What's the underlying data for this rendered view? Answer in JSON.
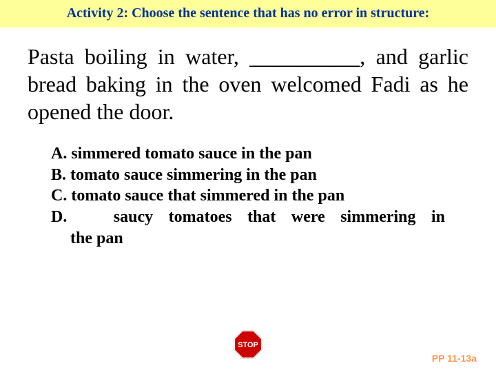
{
  "header": {
    "text": "Activity 2: Choose the sentence that has no error in structure:",
    "color": "#003399",
    "bg_color": "#ffff99",
    "fontsize": 20
  },
  "question": {
    "text": "Pasta boiling in water, __________, and garlic bread baking in the oven welcomed Fadi as he opened the door.",
    "color": "#000000",
    "fontsize": 32
  },
  "options": {
    "fontsize": 24,
    "color": "#000000",
    "items": [
      {
        "label": "A.",
        "text": "simmered tomato sauce in the pan"
      },
      {
        "label": "B.",
        "text": "tomato sauce simmering in the pan"
      },
      {
        "label": "C.",
        "text": "tomato sauce that simmered in the pan"
      },
      {
        "label": "D.",
        "text_line1": "saucy tomatoes that were simmering in",
        "text_line2": "the pan"
      }
    ]
  },
  "footer": {
    "label": "PP 11-13a",
    "label_color": "#ff944d",
    "label_fontsize": 14,
    "icon_stop_text": "STOP",
    "icon_size": 42,
    "icon_fill": "#cc0000",
    "icon_border": "#ffffff",
    "icon_text_color": "#ffffff"
  }
}
